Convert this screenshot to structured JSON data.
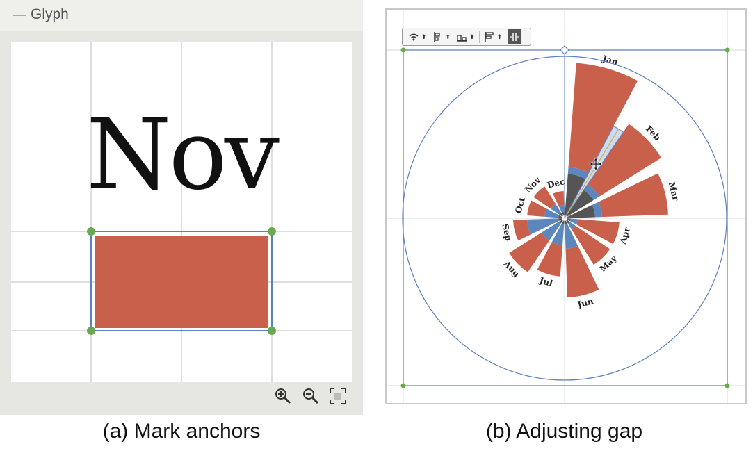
{
  "panel_a": {
    "header": {
      "collapse_symbol": "—",
      "title": "Glyph"
    },
    "canvas": {
      "glyph_text": "Nov",
      "mark_fill": "#c9604b",
      "anchor_color": "#6aa84f",
      "selection_color": "#5b7fc0"
    },
    "zoom_controls": [
      "zoom-in-icon",
      "zoom-out-icon",
      "fit-to-view-icon"
    ]
  },
  "panel_b": {
    "toolbar": {
      "items": [
        "wifi-direction-icon",
        "align-left-icon",
        "align-bottom-icon",
        "align-text-icon",
        "gap-adjust-icon"
      ]
    },
    "chart_data": {
      "type": "polar-bar",
      "categories": [
        "Jan",
        "Feb",
        "Mar",
        "Apr",
        "May",
        "Jun",
        "Jul",
        "Aug",
        "Sep",
        "Oct",
        "Nov",
        "Dec"
      ],
      "series": [
        {
          "name": "",
          "color": "#555555",
          "values": [
            60,
            45,
            40,
            5,
            5,
            5,
            5,
            5,
            5,
            5,
            5,
            5
          ]
        },
        {
          "name": "",
          "color": "#5b87bd",
          "values": [
            10,
            10,
            10,
            10,
            10,
            35,
            30,
            30,
            45,
            20,
            15,
            10
          ]
        },
        {
          "name": "",
          "color": "#c9604b",
          "values": [
            150,
            105,
            95,
            60,
            60,
            70,
            45,
            55,
            20,
            25,
            30,
            20
          ]
        }
      ],
      "selected_gap_highlight": "#c8d9ea"
    }
  },
  "captions": {
    "a": "(a) Mark anchors",
    "b": "(b) Adjusting gap"
  }
}
